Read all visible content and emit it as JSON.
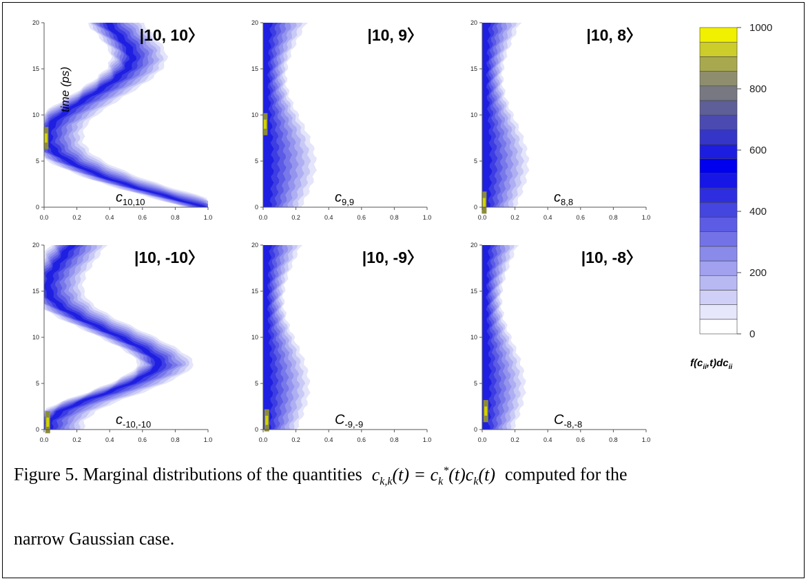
{
  "chart_data": [
    {
      "type": "heatmap",
      "state_label": "|10, 10〉",
      "coef_label": "c",
      "coef_sub": "10,10",
      "ylabel": "time (ps)",
      "xlim": [
        0,
        1.0
      ],
      "ylim": [
        0,
        20
      ],
      "x_ticks": [
        "0.0",
        "0.2",
        "0.4",
        "0.6",
        "0.8",
        "1.0"
      ],
      "y_ticks": [
        "0",
        "5",
        "10",
        "15",
        "20"
      ],
      "ridge": [
        [
          0,
          0.97
        ],
        [
          1,
          0.78
        ],
        [
          2,
          0.58
        ],
        [
          3,
          0.4
        ],
        [
          4,
          0.26
        ],
        [
          5,
          0.14
        ],
        [
          6,
          0.06
        ],
        [
          7,
          0.02
        ],
        [
          8,
          0.02
        ],
        [
          9,
          0.04
        ],
        [
          10,
          0.1
        ],
        [
          11,
          0.18
        ],
        [
          12,
          0.27
        ],
        [
          13,
          0.36
        ],
        [
          14,
          0.44
        ],
        [
          15,
          0.5
        ],
        [
          16,
          0.53
        ],
        [
          17,
          0.52
        ],
        [
          18,
          0.48
        ],
        [
          19,
          0.43
        ],
        [
          20,
          0.38
        ]
      ],
      "peak": [
        7.5,
        0.01
      ]
    },
    {
      "type": "heatmap",
      "state_label": "|10, 9〉",
      "coef_label": "c",
      "coef_sub": "9,9",
      "ylabel": "",
      "xlim": [
        0,
        1.0
      ],
      "ylim": [
        0,
        20
      ],
      "x_ticks": [
        "0.0",
        "0.2",
        "0.4",
        "0.6",
        "0.8",
        "1.0"
      ],
      "y_ticks": [
        "0",
        "5",
        "10",
        "15",
        "20"
      ],
      "ridge": [
        [
          0,
          0.05
        ],
        [
          1,
          0.07
        ],
        [
          2,
          0.08
        ],
        [
          3,
          0.07
        ],
        [
          4,
          0.05
        ],
        [
          5,
          0.03
        ],
        [
          6,
          0.02
        ],
        [
          8,
          0.02
        ],
        [
          10,
          0.02
        ],
        [
          12,
          0.02
        ],
        [
          14,
          0.02
        ],
        [
          16,
          0.02
        ],
        [
          18,
          0.02
        ],
        [
          20,
          0.02
        ]
      ],
      "spread": 0.3,
      "peak": [
        9,
        0.01
      ]
    },
    {
      "type": "heatmap",
      "state_label": "|10, 8〉",
      "coef_label": "c",
      "coef_sub": "8,8",
      "ylabel": "",
      "xlim": [
        0,
        1.0
      ],
      "ylim": [
        0,
        20
      ],
      "x_ticks": [
        "0.0",
        "0.2",
        "0.4",
        "0.6",
        "0.8",
        "1.0"
      ],
      "y_ticks": [
        "0",
        "5",
        "10",
        "15",
        "20"
      ],
      "ridge": [
        [
          0,
          0.02
        ],
        [
          5,
          0.02
        ],
        [
          10,
          0.02
        ],
        [
          15,
          0.02
        ],
        [
          20,
          0.02
        ]
      ],
      "spread": 0.26,
      "peak": [
        0.5,
        0.01
      ]
    },
    {
      "type": "heatmap",
      "state_label": "|10, -10〉",
      "coef_label": "c",
      "coef_sub": "-10,-10",
      "ylabel": "",
      "xlim": [
        0,
        1.0
      ],
      "ylim": [
        0,
        20
      ],
      "x_ticks": [
        "0.0",
        "0.2",
        "0.4",
        "0.6",
        "0.8",
        "1.0"
      ],
      "y_ticks": [
        "0",
        "5",
        "10",
        "15",
        "20"
      ],
      "ridge": [
        [
          0,
          0.02
        ],
        [
          1,
          0.03
        ],
        [
          2,
          0.1
        ],
        [
          3,
          0.22
        ],
        [
          4,
          0.38
        ],
        [
          5,
          0.52
        ],
        [
          6,
          0.63
        ],
        [
          7,
          0.7
        ],
        [
          8,
          0.66
        ],
        [
          9,
          0.57
        ],
        [
          10,
          0.46
        ],
        [
          11,
          0.34
        ],
        [
          12,
          0.22
        ],
        [
          13,
          0.12
        ],
        [
          14,
          0.05
        ],
        [
          15,
          0.02
        ],
        [
          16,
          0.02
        ],
        [
          17,
          0.04
        ],
        [
          18,
          0.08
        ],
        [
          19,
          0.12
        ],
        [
          20,
          0.16
        ]
      ],
      "peak": [
        0.8,
        0.02
      ]
    },
    {
      "type": "heatmap",
      "state_label": "|10, -9〉",
      "coef_label": "C",
      "coef_sub": "-9,-9",
      "ylabel": "",
      "xlim": [
        0,
        1.0
      ],
      "ylim": [
        0,
        20
      ],
      "x_ticks": [
        "0.0",
        "0.2",
        "0.4",
        "0.6",
        "0.8",
        "1.0"
      ],
      "y_ticks": [
        "0",
        "5",
        "10",
        "15",
        "20"
      ],
      "ridge": [
        [
          0,
          0.02
        ],
        [
          5,
          0.02
        ],
        [
          10,
          0.02
        ],
        [
          15,
          0.02
        ],
        [
          20,
          0.02
        ]
      ],
      "spread": 0.26,
      "peak": [
        1.0,
        0.02
      ]
    },
    {
      "type": "heatmap",
      "state_label": "|10, -8〉",
      "coef_label": "C",
      "coef_sub": "-8,-8",
      "ylabel": "",
      "xlim": [
        0,
        1.0
      ],
      "ylim": [
        0,
        20
      ],
      "x_ticks": [
        "0.0",
        "0.2",
        "0.4",
        "0.6",
        "0.8",
        "1.0"
      ],
      "y_ticks": [
        "0",
        "5",
        "10",
        "15",
        "20"
      ],
      "ridge": [
        [
          0,
          0.02
        ],
        [
          5,
          0.02
        ],
        [
          10,
          0.02
        ],
        [
          15,
          0.02
        ],
        [
          20,
          0.02
        ]
      ],
      "spread": 0.24,
      "peak": [
        2.0,
        0.02
      ]
    }
  ],
  "colorbar": {
    "label": "f(c",
    "label_sub": "ii",
    "label_rest": ",t)dc",
    "label_sub2": "ii",
    "ticks": [
      "0",
      "200",
      "400",
      "600",
      "800",
      "1000"
    ],
    "range": [
      0,
      1000
    ],
    "colors": [
      "#ffffff",
      "#e7e7fb",
      "#cfcff7",
      "#b8b8f3",
      "#a1a1ef",
      "#8a8aeb",
      "#7373e7",
      "#5c5ce4",
      "#4545e0",
      "#2e2ee0",
      "#1616e6",
      "#0000ee",
      "#1d1de0",
      "#3535c8",
      "#4a4ab0",
      "#5e5e98",
      "#787882",
      "#8e8e6e",
      "#a8a84e",
      "#cccc2a",
      "#f0f000"
    ]
  },
  "caption": {
    "prefix": "Figure 5. Marginal distributions of the quantities",
    "equation": "c_k,k(t) = c*_k(t) c_k(t)",
    "suffix": "computed for the",
    "line2": "narrow Gaussian case."
  }
}
